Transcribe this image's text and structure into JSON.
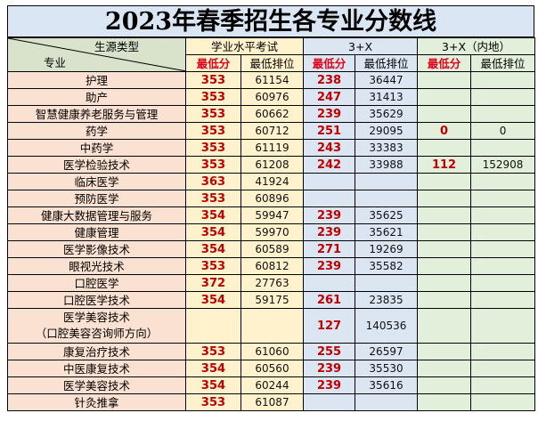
{
  "title": "2023年春季招生各专业分数线",
  "header": {
    "corner_top": "生源类型",
    "corner_bottom": "专业",
    "group_a": "学业水平考试",
    "group_b": "3+X",
    "group_c": "3+X（内地）",
    "min_score": "最低分",
    "min_rank": "最低排位"
  },
  "colors": {
    "name_bg": "#fbe1d1",
    "group_a_bg": "#fff2cc",
    "group_b_bg": "#dce6f2",
    "group_c_bg": "#e2efda",
    "score_red": "#c00000"
  },
  "rows": [
    {
      "major": "护理",
      "a_score": "353",
      "a_rank": "61154",
      "b_score": "238",
      "b_rank": "36447",
      "c_score": "",
      "c_rank": ""
    },
    {
      "major": "助产",
      "a_score": "353",
      "a_rank": "60976",
      "b_score": "247",
      "b_rank": "31413",
      "c_score": "",
      "c_rank": ""
    },
    {
      "major": "智慧健康养老服务与管理",
      "a_score": "353",
      "a_rank": "60662",
      "b_score": "239",
      "b_rank": "35629",
      "c_score": "",
      "c_rank": ""
    },
    {
      "major": "药学",
      "a_score": "353",
      "a_rank": "60712",
      "b_score": "251",
      "b_rank": "29095",
      "c_score": "0",
      "c_rank": "0"
    },
    {
      "major": "中药学",
      "a_score": "353",
      "a_rank": "61119",
      "b_score": "243",
      "b_rank": "33383",
      "c_score": "",
      "c_rank": ""
    },
    {
      "major": "医学检验技术",
      "a_score": "353",
      "a_rank": "61208",
      "b_score": "242",
      "b_rank": "33988",
      "c_score": "112",
      "c_rank": "152908"
    },
    {
      "major": "临床医学",
      "a_score": "363",
      "a_rank": "41924",
      "b_score": "",
      "b_rank": "",
      "c_score": "",
      "c_rank": ""
    },
    {
      "major": "预防医学",
      "a_score": "353",
      "a_rank": "60896",
      "b_score": "",
      "b_rank": "",
      "c_score": "",
      "c_rank": ""
    },
    {
      "major": "健康大数据管理与服务",
      "a_score": "354",
      "a_rank": "59947",
      "b_score": "239",
      "b_rank": "35625",
      "c_score": "",
      "c_rank": ""
    },
    {
      "major": "健康管理",
      "a_score": "354",
      "a_rank": "59970",
      "b_score": "239",
      "b_rank": "35621",
      "c_score": "",
      "c_rank": ""
    },
    {
      "major": "医学影像技术",
      "a_score": "354",
      "a_rank": "60589",
      "b_score": "271",
      "b_rank": "19269",
      "c_score": "",
      "c_rank": ""
    },
    {
      "major": "眼视光技术",
      "a_score": "353",
      "a_rank": "60812",
      "b_score": "239",
      "b_rank": "35582",
      "c_score": "",
      "c_rank": ""
    },
    {
      "major": "口腔医学",
      "a_score": "372",
      "a_rank": "27763",
      "b_score": "",
      "b_rank": "",
      "c_score": "",
      "c_rank": ""
    },
    {
      "major": "口腔医学技术",
      "a_score": "354",
      "a_rank": "59175",
      "b_score": "261",
      "b_rank": "23835",
      "c_score": "",
      "c_rank": ""
    },
    {
      "major": "医学美容技术",
      "major_line2": "（口腔美容咨询师方向）",
      "a_score": "",
      "a_rank": "",
      "b_score": "127",
      "b_rank": "140536",
      "c_score": "",
      "c_rank": "",
      "tall": true
    },
    {
      "major": "康复治疗技术",
      "a_score": "353",
      "a_rank": "61060",
      "b_score": "255",
      "b_rank": "26597",
      "c_score": "",
      "c_rank": ""
    },
    {
      "major": "中医康复技术",
      "a_score": "354",
      "a_rank": "60560",
      "b_score": "239",
      "b_rank": "35530",
      "c_score": "",
      "c_rank": ""
    },
    {
      "major": "医学美容技术",
      "a_score": "354",
      "a_rank": "60244",
      "b_score": "239",
      "b_rank": "35616",
      "c_score": "",
      "c_rank": ""
    },
    {
      "major": "针灸推拿",
      "a_score": "353",
      "a_rank": "61087",
      "b_score": "",
      "b_rank": "",
      "c_score": "",
      "c_rank": ""
    }
  ]
}
